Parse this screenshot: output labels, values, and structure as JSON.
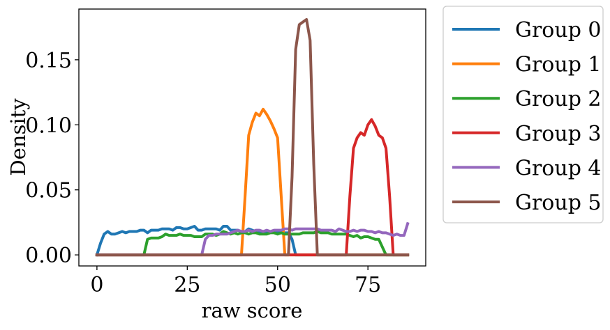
{
  "chart_data": {
    "type": "line",
    "xlabel": "raw score",
    "ylabel": "Density",
    "xlim": [
      -5,
      91
    ],
    "ylim": [
      -0.0085,
      0.189
    ],
    "xticks": [
      0,
      25,
      50,
      75
    ],
    "yticks": [
      0.0,
      0.05,
      0.1,
      0.15
    ],
    "xtick_labels": [
      "0",
      "25",
      "50",
      "75"
    ],
    "ytick_labels": [
      "0.00",
      "0.05",
      "0.10",
      "0.15"
    ],
    "grid": false,
    "legend_position": "outside-right",
    "series": [
      {
        "name": "Group 0",
        "color": "#1f77b4",
        "x": [
          0,
          1,
          2,
          3,
          4,
          5,
          6,
          7,
          8,
          9,
          10,
          11,
          12,
          13,
          14,
          15,
          16,
          17,
          18,
          19,
          20,
          21,
          22,
          23,
          24,
          25,
          26,
          27,
          28,
          29,
          30,
          31,
          32,
          33,
          34,
          35,
          36,
          37,
          38,
          39,
          40,
          41,
          42,
          43,
          44,
          45,
          46,
          47,
          48,
          49,
          50,
          51,
          52,
          53,
          54,
          55,
          56,
          57,
          58,
          59,
          60,
          61,
          62,
          63,
          64,
          65,
          66,
          67,
          68,
          69,
          70,
          71,
          72,
          73,
          74,
          75,
          76,
          77,
          78,
          79,
          80,
          81,
          82,
          83,
          84,
          85,
          86
        ],
        "y": [
          0.0,
          0.009,
          0.016,
          0.018,
          0.016,
          0.016,
          0.017,
          0.018,
          0.017,
          0.018,
          0.018,
          0.018,
          0.019,
          0.019,
          0.017,
          0.019,
          0.019,
          0.019,
          0.02,
          0.02,
          0.02,
          0.019,
          0.021,
          0.021,
          0.02,
          0.02,
          0.021,
          0.022,
          0.019,
          0.019,
          0.02,
          0.02,
          0.02,
          0.02,
          0.019,
          0.022,
          0.022,
          0.019,
          0.019,
          0.019,
          0.018,
          0.018,
          0.02,
          0.019,
          0.018,
          0.018,
          0.018,
          0.018,
          0.018,
          0.018,
          0.017,
          0.017,
          0.017,
          0.017,
          0.012,
          0.0,
          0.0,
          0.0,
          0.0,
          0.0,
          0.0,
          0.0,
          0.0,
          0.0,
          0.0,
          0.0,
          0.0,
          0.0,
          0.0,
          0.0,
          0.0,
          0.0,
          0.0,
          0.0,
          0.0,
          0.0,
          0.0,
          0.0,
          0.0,
          0.0,
          0.0,
          0.0,
          0.0,
          0.0,
          0.0,
          0.0,
          0.0
        ]
      },
      {
        "name": "Group 1",
        "color": "#ff7f0e",
        "x": [
          0,
          40,
          41,
          42,
          43,
          44,
          45,
          46,
          47,
          48,
          49,
          50,
          51,
          52,
          86
        ],
        "y": [
          0.0,
          0.0,
          0.045,
          0.092,
          0.102,
          0.109,
          0.107,
          0.112,
          0.108,
          0.103,
          0.097,
          0.09,
          0.045,
          0.0,
          0.0
        ]
      },
      {
        "name": "Group 2",
        "color": "#2ca02c",
        "x": [
          0,
          13,
          14,
          15,
          16,
          17,
          18,
          19,
          20,
          21,
          22,
          23,
          24,
          25,
          26,
          27,
          28,
          29,
          30,
          31,
          32,
          33,
          34,
          35,
          36,
          37,
          38,
          39,
          40,
          41,
          42,
          43,
          44,
          45,
          46,
          47,
          48,
          49,
          50,
          51,
          52,
          53,
          54,
          55,
          56,
          57,
          58,
          59,
          60,
          61,
          62,
          63,
          64,
          65,
          66,
          67,
          68,
          69,
          70,
          71,
          72,
          73,
          74,
          75,
          76,
          77,
          78,
          79,
          80,
          86
        ],
        "y": [
          0.0,
          0.0,
          0.012,
          0.013,
          0.013,
          0.013,
          0.014,
          0.016,
          0.015,
          0.015,
          0.015,
          0.016,
          0.015,
          0.015,
          0.015,
          0.014,
          0.014,
          0.014,
          0.016,
          0.016,
          0.016,
          0.015,
          0.016,
          0.018,
          0.017,
          0.016,
          0.017,
          0.016,
          0.017,
          0.017,
          0.016,
          0.017,
          0.017,
          0.016,
          0.016,
          0.016,
          0.017,
          0.017,
          0.016,
          0.017,
          0.016,
          0.016,
          0.016,
          0.016,
          0.016,
          0.017,
          0.017,
          0.017,
          0.017,
          0.018,
          0.017,
          0.017,
          0.017,
          0.016,
          0.016,
          0.016,
          0.016,
          0.016,
          0.015,
          0.014,
          0.015,
          0.013,
          0.014,
          0.014,
          0.013,
          0.012,
          0.012,
          0.006,
          0.0,
          0.0
        ]
      },
      {
        "name": "Group 3",
        "color": "#d62728",
        "x": [
          0,
          69,
          70,
          71,
          72,
          73,
          74,
          75,
          76,
          77,
          78,
          79,
          80,
          81,
          82,
          86
        ],
        "y": [
          0.0,
          0.0,
          0.045,
          0.082,
          0.09,
          0.094,
          0.092,
          0.1,
          0.104,
          0.099,
          0.092,
          0.09,
          0.082,
          0.045,
          0.0,
          0.0
        ]
      },
      {
        "name": "Group 4",
        "color": "#9467bd",
        "x": [
          0,
          29,
          30,
          31,
          32,
          33,
          34,
          35,
          36,
          37,
          38,
          39,
          40,
          41,
          42,
          43,
          44,
          45,
          46,
          47,
          48,
          49,
          50,
          51,
          52,
          53,
          54,
          55,
          56,
          57,
          58,
          59,
          60,
          61,
          62,
          63,
          64,
          65,
          66,
          67,
          68,
          69,
          70,
          71,
          72,
          73,
          74,
          75,
          76,
          77,
          78,
          79,
          80,
          81,
          82,
          83,
          84,
          85,
          86
        ],
        "y": [
          0.0,
          0.0,
          0.012,
          0.015,
          0.015,
          0.016,
          0.016,
          0.016,
          0.016,
          0.017,
          0.018,
          0.019,
          0.018,
          0.018,
          0.019,
          0.018,
          0.019,
          0.019,
          0.018,
          0.019,
          0.018,
          0.019,
          0.019,
          0.019,
          0.02,
          0.02,
          0.019,
          0.02,
          0.02,
          0.02,
          0.02,
          0.02,
          0.02,
          0.02,
          0.019,
          0.019,
          0.019,
          0.019,
          0.018,
          0.02,
          0.019,
          0.018,
          0.018,
          0.019,
          0.018,
          0.019,
          0.019,
          0.018,
          0.018,
          0.017,
          0.018,
          0.017,
          0.017,
          0.016,
          0.015,
          0.016,
          0.015,
          0.015,
          0.024
        ]
      },
      {
        "name": "Group 5",
        "color": "#8c564b",
        "x": [
          0,
          53,
          54,
          55,
          56,
          57,
          58,
          59,
          60,
          61,
          86
        ],
        "y": [
          0.0,
          0.0,
          0.06,
          0.158,
          0.177,
          0.179,
          0.181,
          0.165,
          0.07,
          0.0,
          0.0
        ]
      }
    ]
  }
}
